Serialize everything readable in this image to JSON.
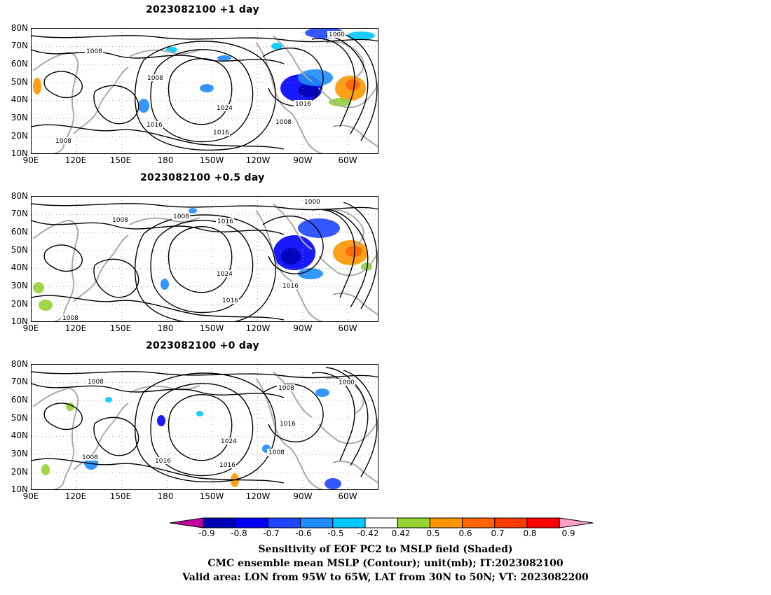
{
  "panels": [
    {
      "title": "2023082100  +1 day"
    },
    {
      "title": "2023082100  +0.5 day"
    },
    {
      "title": "2023082100  +0 day"
    }
  ],
  "axes": {
    "lat_ticks": [
      "80N",
      "70N",
      "60N",
      "50N",
      "40N",
      "30N",
      "20N",
      "10N"
    ],
    "lon_ticks": [
      "90E",
      "120E",
      "150E",
      "180",
      "150W",
      "120W",
      "90W",
      "60W"
    ]
  },
  "contour_labels": {
    "p0": [
      "1008",
      "1008",
      "1024",
      "1016",
      "1016",
      "1008",
      "1016",
      "1000",
      "1008"
    ],
    "p1": [
      "1008",
      "1008",
      "1016",
      "1000",
      "1024",
      "1016",
      "1016",
      "1008"
    ],
    "p2": [
      "1008",
      "1008",
      "1000",
      "1016",
      "1024",
      "1016",
      "1016",
      "1008",
      "1008"
    ]
  },
  "colorbar": {
    "labels": [
      "-0.9",
      "-0.8",
      "-0.7",
      "-0.6",
      "-0.5",
      "-0.42",
      "0.42",
      "0.5",
      "0.6",
      "0.7",
      "0.8",
      "0.9"
    ],
    "colors": [
      "#0000b4",
      "#0000ff",
      "#1e46ff",
      "#1e8cff",
      "#00c8ff",
      "#ffffff",
      "#96d232",
      "#ff9600",
      "#ff6400",
      "#ff3c00",
      "#ff0000"
    ],
    "low_end_color": "#c000a0",
    "high_end_color": "#ffa0c8"
  },
  "captions": {
    "line1": "Sensitivity of EOF PC2 to MSLP field (Shaded)",
    "line2": "CMC ensemble mean MSLP (Contour); unit(mb); IT:2023082100",
    "line3": "Valid area: LON from 95W to 65W, LAT from 30N to 50N; VT: 2023082200"
  }
}
